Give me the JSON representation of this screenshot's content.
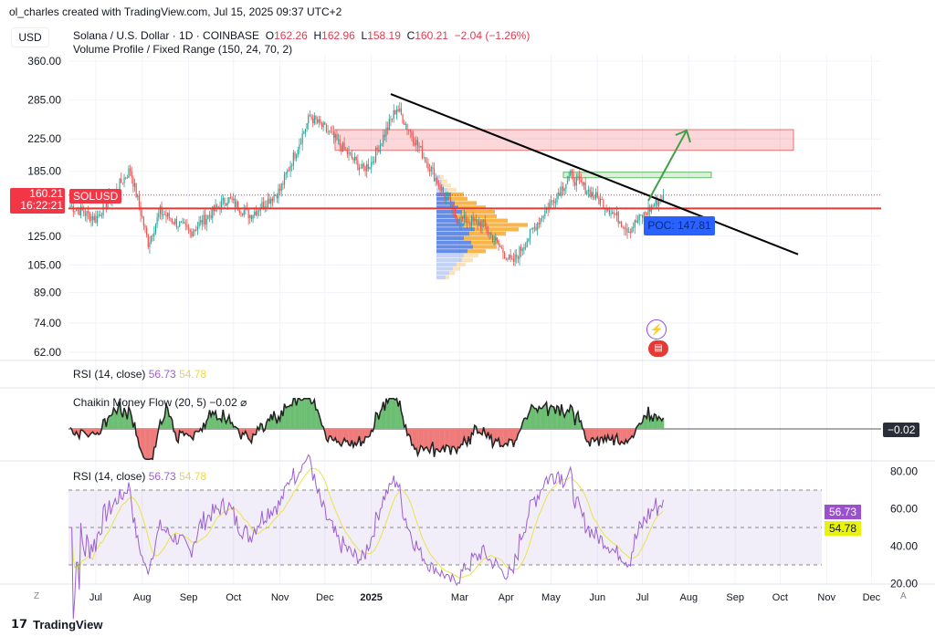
{
  "header": {
    "credit": "ol_charles created with TradingView.com, Jul 15, 2025 09:37 UTC+2",
    "currency": "USD",
    "symbol": "Solana / U.S. Dollar · 1D · COINBASE",
    "o_label": "O",
    "o": "162.26",
    "h_label": "H",
    "h": "162.96",
    "l_label": "L",
    "l": "158.19",
    "c_label": "C",
    "c": "160.21",
    "change": "−2.04 (−1.26%)",
    "indicator": "Volume Profile / Fixed Range (150, 24, 70, 2)"
  },
  "price_tag": {
    "price": "160.21",
    "countdown": "16:22:21",
    "symbol": "SOLUSD"
  },
  "poc_label": "POC: 147.81",
  "rsi_collapsed": {
    "title": "RSI (14, close)",
    "value": "56.73",
    "ma": "54.78"
  },
  "cmf": {
    "title": "Chaikin Money Flow (20, 5)",
    "value": "−0.02",
    "tag": "−0.02"
  },
  "rsi": {
    "title": "RSI (14, close)",
    "value": "56.73",
    "ma": "54.78",
    "ticks": [
      "80.00",
      "60.00",
      "40.00",
      "20.00"
    ]
  },
  "footer": {
    "brand": "TradingView"
  },
  "axis": {
    "left_z": "Z",
    "right_a": "A"
  },
  "colors": {
    "up": "#26a69a",
    "down": "#ef5350",
    "rsi": "#9c5fcf",
    "rsi_ma": "#e9e34a",
    "poc": "#e53935",
    "vp_up": "#3f6fe0",
    "vp_down": "#f7a21b"
  },
  "chart_data": {
    "type": "candlestick",
    "title": "Solana / U.S. Dollar · 1D · COINBASE",
    "y_scale": "log",
    "ylim": [
      58,
      380
    ],
    "y_ticks": [
      360,
      285,
      225,
      185,
      125,
      105,
      89,
      74,
      62
    ],
    "x_ticks": [
      "Jul",
      "Aug",
      "Sep",
      "Oct",
      "Nov",
      "Dec",
      "2025",
      "Mar",
      "Apr",
      "May",
      "Jun",
      "Jul",
      "Aug",
      "Sep",
      "Oct",
      "Nov",
      "Dec"
    ],
    "x_tick_days": [
      17,
      48,
      79,
      109,
      140,
      170,
      201,
      260,
      291,
      321,
      352,
      382,
      413,
      444,
      474,
      505,
      535
    ],
    "close_anchors_day_price": [
      [
        0,
        150
      ],
      [
        17,
        139
      ],
      [
        40,
        187
      ],
      [
        52,
        120
      ],
      [
        60,
        145
      ],
      [
        80,
        128
      ],
      [
        105,
        157
      ],
      [
        120,
        142
      ],
      [
        140,
        165
      ],
      [
        160,
        258
      ],
      [
        172,
        235
      ],
      [
        195,
        187
      ],
      [
        201,
        195
      ],
      [
        218,
        272
      ],
      [
        240,
        190
      ],
      [
        258,
        139
      ],
      [
        275,
        135
      ],
      [
        295,
        106
      ],
      [
        318,
        148
      ],
      [
        334,
        180
      ],
      [
        358,
        150
      ],
      [
        373,
        130
      ],
      [
        396,
        160
      ]
    ],
    "last_day": 396,
    "poc": 147.81,
    "current": 160.21,
    "resistance_zone": [
      210,
      238
    ],
    "target_zone": [
      178,
      184
    ],
    "trendline": [
      [
        214,
        295
      ],
      [
        486,
        112
      ]
    ],
    "volume_profile_rows": {
      "price_range": [
        96,
        181
      ],
      "up": [
        10,
        14,
        18,
        22,
        28,
        30,
        34,
        40,
        38,
        30,
        36,
        42,
        30,
        26,
        22,
        28,
        24,
        20,
        14,
        16,
        12,
        8,
        6,
        4
      ],
      "down": [
        4,
        6,
        8,
        10,
        12,
        16,
        20,
        26,
        30,
        36,
        40,
        48,
        70,
        52,
        44,
        36,
        30,
        24,
        20,
        14,
        10,
        8,
        6,
        4
      ]
    }
  }
}
